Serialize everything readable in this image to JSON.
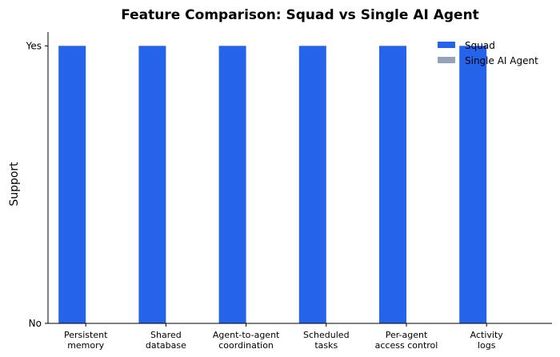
{
  "chart_data": {
    "type": "bar",
    "title": "Feature Comparison: Squad vs Single AI Agent",
    "xlabel": "",
    "ylabel": "Support",
    "categories": [
      [
        "Persistent",
        "memory"
      ],
      [
        "Shared",
        "database"
      ],
      [
        "Agent-to-agent",
        "coordination"
      ],
      [
        "Scheduled",
        "tasks"
      ],
      [
        "Per-agent",
        "access control"
      ],
      [
        "Activity",
        "logs"
      ]
    ],
    "series": [
      {
        "name": "Squad",
        "color": "#2563eb",
        "values": [
          1,
          1,
          1,
          1,
          1,
          1
        ]
      },
      {
        "name": "Single AI Agent",
        "color": "#94a3b8",
        "values": [
          0,
          0,
          0,
          0,
          0,
          0
        ]
      }
    ],
    "yticks": [
      {
        "value": 0,
        "label": "No"
      },
      {
        "value": 1,
        "label": "Yes"
      }
    ],
    "ylim": [
      0,
      1.05
    ],
    "grid": false,
    "legend": "top-right"
  }
}
